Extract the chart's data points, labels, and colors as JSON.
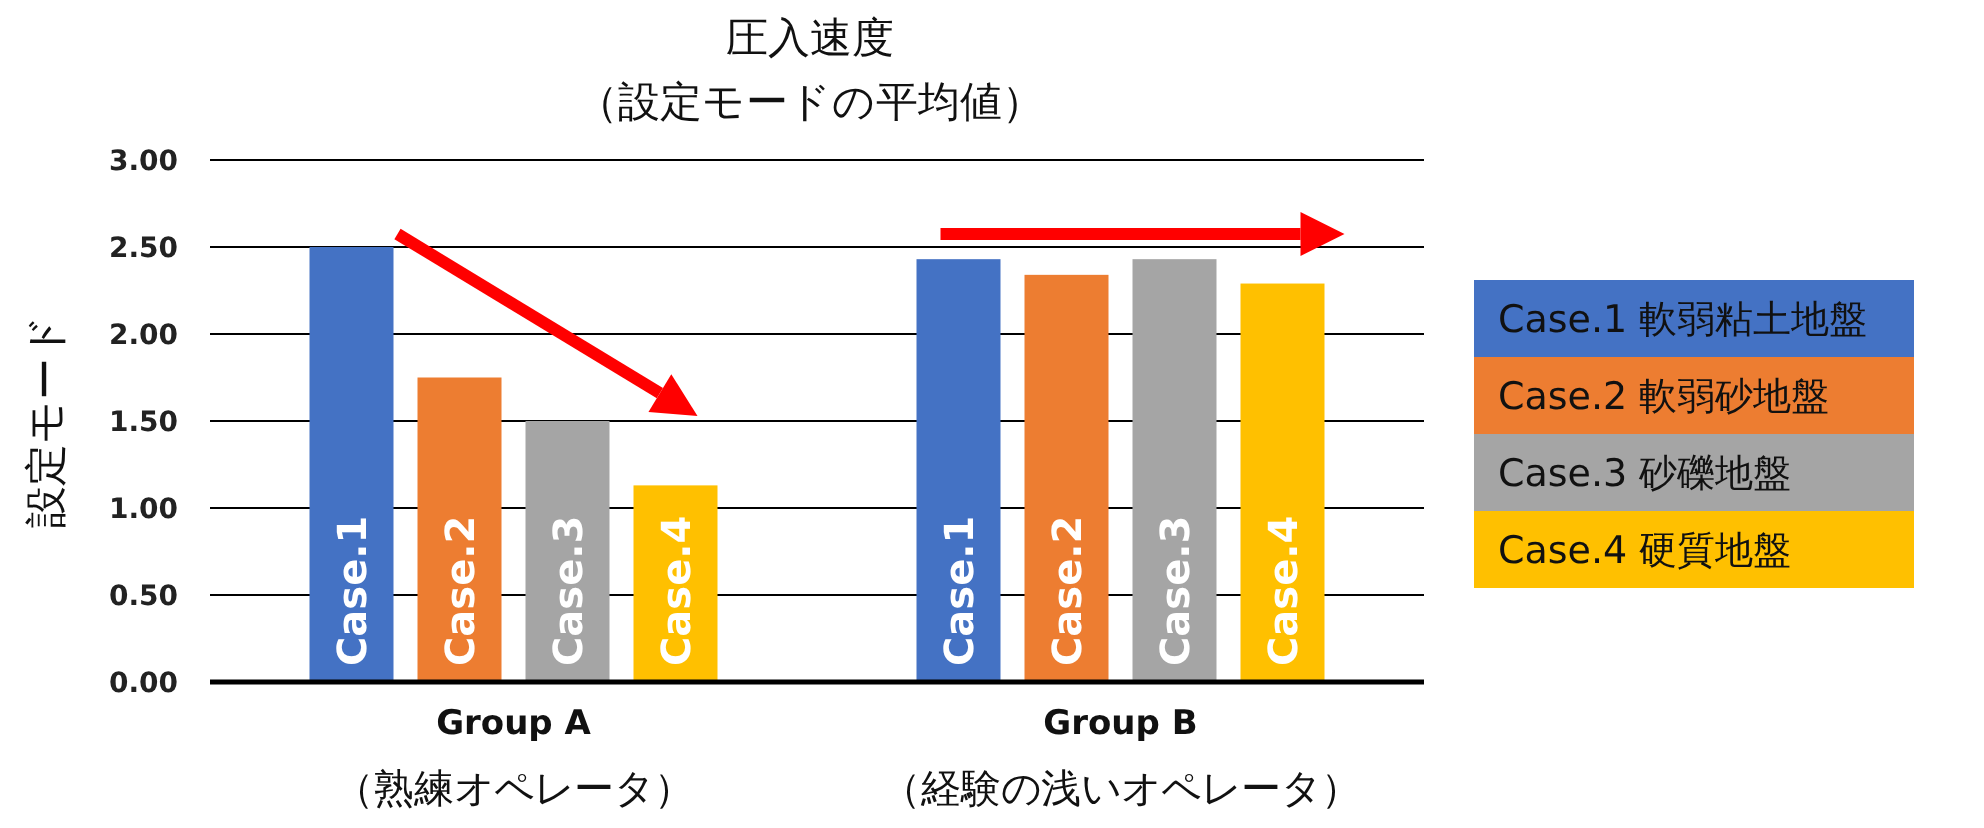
{
  "chart_data": {
    "type": "bar",
    "title": "圧入速度",
    "subtitle": "（設定モードの平均値）",
    "ylabel": "設定モード",
    "categories": [
      "Group A\n（熟練オペレータ）",
      "Group B\n（経験の浅いオペレータ）"
    ],
    "series": [
      {
        "name": "Case.1  軟弱粘土地盤",
        "color": "#4472c4",
        "values": [
          2.5,
          2.43
        ]
      },
      {
        "name": "Case.2  軟弱砂地盤",
        "color": "#ed7d31",
        "values": [
          1.75,
          2.34
        ]
      },
      {
        "name": "Case.3  砂礫地盤",
        "color": "#a5a5a5",
        "values": [
          1.5,
          2.43
        ]
      },
      {
        "name": "Case.4  硬質地盤",
        "color": "#ffc000",
        "values": [
          1.13,
          2.29
        ]
      }
    ],
    "annotations": [
      "Case.1",
      "Case.2",
      "Case.3",
      "Case.4",
      "Case.1",
      "Case.2",
      "Case.3",
      "Case.4"
    ],
    "ylim": [
      0,
      3
    ],
    "yticks": [
      {
        "value": 0,
        "label": "0.00"
      },
      {
        "value": 0.5,
        "label": "0.50"
      },
      {
        "value": 1,
        "label": "1.00"
      },
      {
        "value": 1.5,
        "label": "1.50"
      },
      {
        "value": 2,
        "label": "2.00"
      },
      {
        "value": 2.5,
        "label": "2.50"
      },
      {
        "value": 3,
        "label": "3.00"
      }
    ],
    "grid": "y",
    "legend": "right"
  }
}
